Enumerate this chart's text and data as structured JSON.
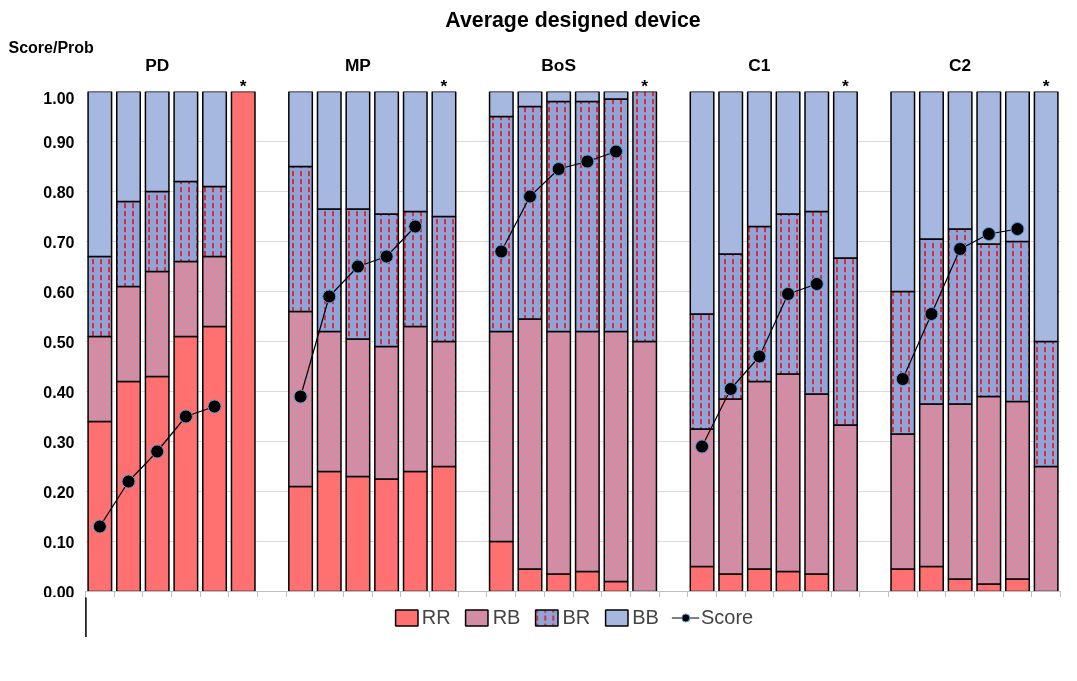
{
  "chart_data": {
    "type": "bar",
    "stacked": true,
    "title": "Average designed device",
    "ylabel": "Score/Prob",
    "categories": [
      null,
      null,
      null,
      null,
      null,
      null,
      null,
      null,
      null,
      null,
      null,
      null,
      null,
      null,
      null,
      null,
      null,
      null,
      null,
      null,
      null,
      null,
      null,
      null,
      null,
      null,
      null,
      null,
      null,
      null,
      null,
      null,
      null,
      null
    ],
    "series": [
      {
        "name": "RR",
        "color": "#ff7070",
        "values": [
          0.34,
          0.42,
          0.43,
          0.51,
          0.53,
          1.0,
          null,
          0.21,
          0.24,
          0.23,
          0.225,
          0.24,
          0.25,
          null,
          0.1,
          0.045,
          0.035,
          0.04,
          0.02,
          0,
          null,
          0.05,
          0.035,
          0.045,
          0.04,
          0.035,
          0,
          null,
          0.045,
          0.05,
          0.025,
          0.015,
          0.025,
          0
        ]
      },
      {
        "name": "RB",
        "color": "#ff7c80",
        "values": [
          0.17,
          0.19,
          0.21,
          0.15,
          0.14,
          0,
          null,
          0.35,
          0.28,
          0.275,
          0.265,
          0.29,
          0.25,
          null,
          0.42,
          0.5,
          0.485,
          0.48,
          0.5,
          0.5,
          null,
          0.275,
          0.35,
          0.375,
          0.395,
          0.36,
          0.333,
          null,
          0.27,
          0.325,
          0.35,
          0.375,
          0.355,
          0.25
        ]
      },
      {
        "name": "BR",
        "color": "#8fa5d9",
        "values": [
          0.16,
          0.17,
          0.16,
          0.16,
          0.14,
          0,
          null,
          0.29,
          0.245,
          0.26,
          0.265,
          0.23,
          0.25,
          null,
          0.43,
          0.425,
          0.46,
          0.46,
          0.465,
          0.5,
          null,
          0.23,
          0.29,
          0.31,
          0.32,
          0.365,
          0.334,
          null,
          0.285,
          0.33,
          0.35,
          0.305,
          0.32,
          0.25
        ]
      },
      {
        "name": "BB",
        "color": "#a6b8e0",
        "values": [
          0.33,
          0.22,
          0.2,
          0.18,
          0.19,
          0,
          null,
          0.15,
          0.235,
          0.235,
          0.245,
          0.24,
          0.25,
          null,
          0.05,
          0.03,
          0.02,
          0.02,
          0.015,
          0,
          null,
          0.445,
          0.325,
          0.27,
          0.245,
          0.24,
          0.333,
          null,
          0.4,
          0.295,
          0.275,
          0.305,
          0.3,
          0.5
        ]
      },
      {
        "name": "Score",
        "type": "line",
        "color": "#000000",
        "values": [
          0.13,
          0.22,
          0.28,
          0.35,
          0.37,
          null,
          null,
          0.39,
          0.59,
          0.65,
          0.67,
          0.73,
          null,
          null,
          0.68,
          0.79,
          0.845,
          0.86,
          0.88,
          null,
          null,
          0.29,
          0.405,
          0.47,
          0.595,
          0.615,
          null,
          null,
          0.425,
          0.555,
          0.685,
          0.715,
          0.725,
          null
        ]
      }
    ],
    "marker": "circle",
    "ylim": [
      0,
      1
    ],
    "yticks": [
      {
        "value": 0,
        "label": "0.00"
      },
      {
        "value": 0.1,
        "label": "0.10"
      },
      {
        "value": 0.2,
        "label": "0.20"
      },
      {
        "value": 0.3,
        "label": "0.30"
      },
      {
        "value": 0.4,
        "label": "0.40"
      },
      {
        "value": 0.5,
        "label": "0.50"
      },
      {
        "value": 0.6,
        "label": "0.60"
      },
      {
        "value": 0.7,
        "label": "0.70"
      },
      {
        "value": 0.8,
        "label": "0.80"
      },
      {
        "value": 0.9,
        "label": "0.90"
      },
      {
        "value": 1,
        "label": "1.00"
      }
    ],
    "tick_labels": "y",
    "grid": "y",
    "legend": "bottom",
    "annotations": [
      "PD",
      "*",
      "MP",
      "*",
      "BoS",
      "*",
      "C1",
      "*",
      "C2",
      "*"
    ]
  }
}
